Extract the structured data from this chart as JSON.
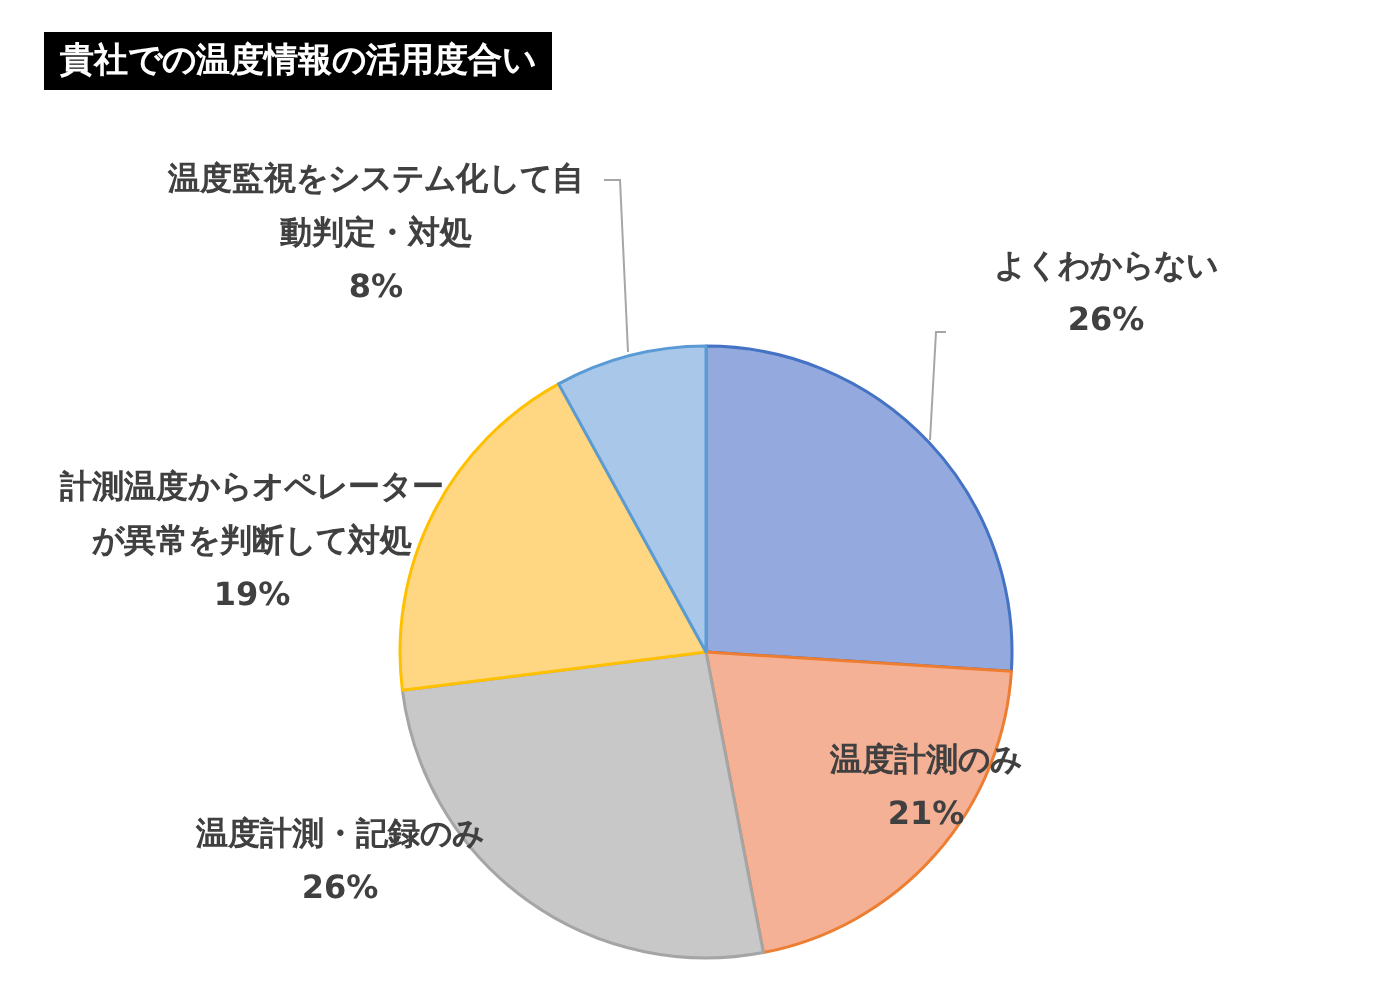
{
  "chart_data": {
    "type": "pie",
    "title": "貴社での温度情報の活用度合い",
    "categories": [
      "よくわからない",
      "温度計測のみ",
      "温度計測・記録のみ",
      "計測温度からオペレーターが異常を判断して対処",
      "温度監視をシステム化して自動判定・対処"
    ],
    "values": [
      26,
      21,
      26,
      19,
      8
    ],
    "value_labels": [
      "26%",
      "21%",
      "26%",
      "19%",
      "8%"
    ],
    "colors": [
      "#94aade",
      "#f5b196",
      "#c8c8c8",
      "#ffd682",
      "#a9c7e8"
    ],
    "legend": false
  }
}
